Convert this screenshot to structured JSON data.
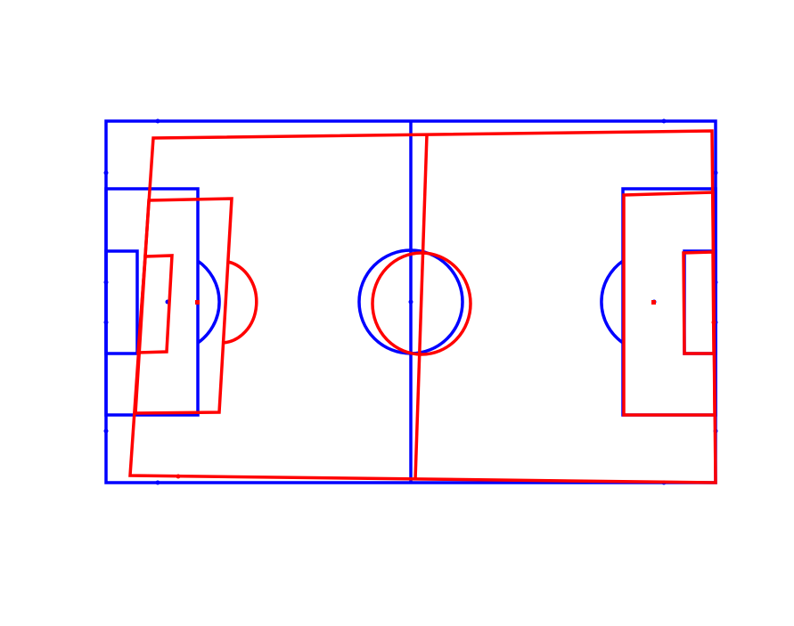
{
  "diagram": {
    "overlays": [
      {
        "key": "reference",
        "color": "#0000ff"
      },
      {
        "key": "projected",
        "color": "#ff0000"
      }
    ]
  }
}
